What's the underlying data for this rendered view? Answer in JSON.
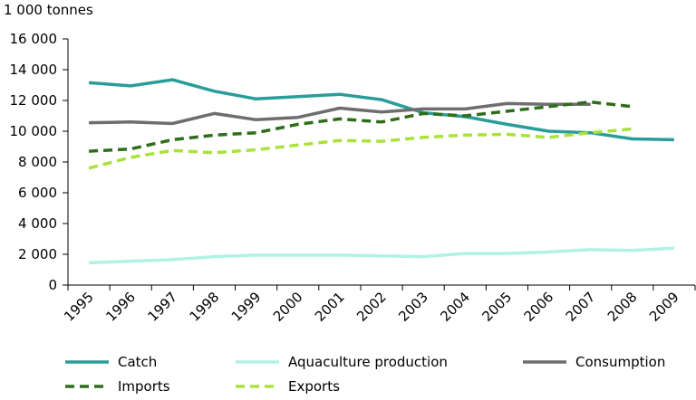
{
  "chart_data": {
    "type": "line",
    "unit_label": "1 000 tonnes",
    "categories": [
      "1995",
      "1996",
      "1997",
      "1998",
      "1999",
      "2000",
      "2001",
      "2002",
      "2003",
      "2004",
      "2005",
      "2006",
      "2007",
      "2008",
      "2009"
    ],
    "y_ticks": [
      "0",
      "2 000",
      "4 000",
      "6 000",
      "8 000",
      "10 000",
      "12 000",
      "14 000",
      "16 000"
    ],
    "ylim": [
      0,
      16000
    ],
    "grid": false,
    "legend_position": "bottom",
    "series": [
      {
        "name": "Catch",
        "color": "#2a9d99",
        "dash": "solid",
        "values": [
          13150,
          12950,
          13350,
          12600,
          12100,
          12250,
          12400,
          12050,
          11200,
          10950,
          10450,
          10000,
          9900,
          9500,
          9450
        ]
      },
      {
        "name": "Aquaculture production",
        "color": "#b0f2e6",
        "dash": "solid",
        "values": [
          1450,
          1550,
          1650,
          1850,
          1950,
          1950,
          1950,
          1900,
          1850,
          2050,
          2050,
          2150,
          2300,
          2250,
          2400
        ]
      },
      {
        "name": "Consumption",
        "color": "#6e6e6e",
        "dash": "solid",
        "values": [
          10550,
          10600,
          10500,
          11150,
          10750,
          10900,
          11500,
          11250,
          11450,
          11450,
          11800,
          11750,
          11750,
          null,
          null
        ]
      },
      {
        "name": "Imports",
        "color": "#2e6e1a",
        "dash": "dashed",
        "values": [
          8700,
          8850,
          9450,
          9750,
          9900,
          10450,
          10800,
          10600,
          11150,
          11000,
          11300,
          11600,
          11900,
          11600,
          null
        ]
      },
      {
        "name": "Exports",
        "color": "#a8e23a",
        "dash": "dashed",
        "values": [
          7600,
          8300,
          8750,
          8600,
          8800,
          9100,
          9400,
          9350,
          9600,
          9750,
          9800,
          9600,
          9900,
          10150,
          null
        ]
      }
    ]
  }
}
